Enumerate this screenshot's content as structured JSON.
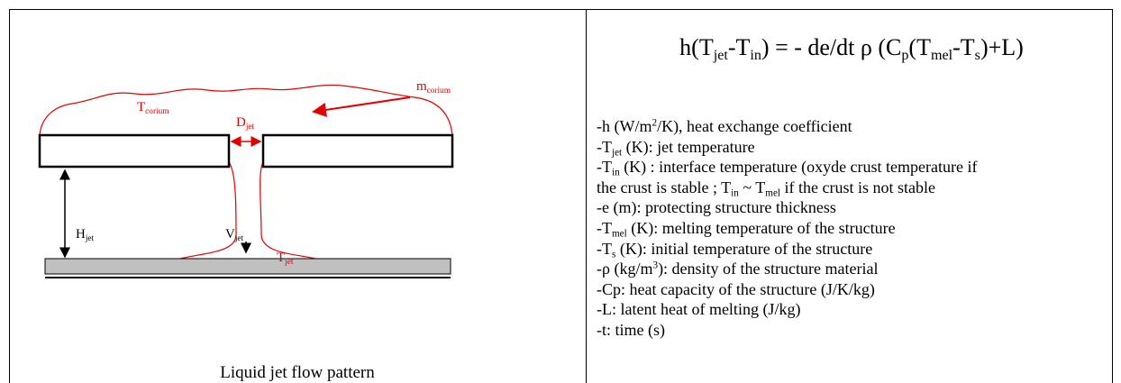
{
  "diagram": {
    "labels": [
      [
        {
          "text": "T"
        },
        {
          "sub": "corium"
        }
      ],
      [
        {
          "text": "m"
        },
        {
          "sub": "corium"
        }
      ],
      [
        {
          "text": "D"
        },
        {
          "sub": "jet"
        }
      ],
      [
        {
          "text": "H"
        },
        {
          "sub": "jet"
        }
      ],
      [
        {
          "text": "V"
        },
        {
          "sub": "jet"
        }
      ],
      [
        {
          "text": "T"
        },
        {
          "sub": "jet"
        }
      ]
    ],
    "caption": "Liquid jet flow pattern"
  },
  "equation": [
    {
      "text": "h(T"
    },
    {
      "sub": "jet"
    },
    {
      "text": "-T"
    },
    {
      "sub": "in"
    },
    {
      "text": ") = - de/dt ρ (C"
    },
    {
      "sub": "p"
    },
    {
      "text": "(T"
    },
    {
      "sub": "mel"
    },
    {
      "text": "-T"
    },
    {
      "sub": "s"
    },
    {
      "text": ")+L)"
    }
  ],
  "definitions": [
    [
      {
        "text": "-h (W/m"
      },
      {
        "sup": "2"
      },
      {
        "text": "/K), heat exchange coefficient"
      }
    ],
    [
      {
        "text": "-T"
      },
      {
        "sub": "jet"
      },
      {
        "text": " (K): jet temperature"
      }
    ],
    [
      {
        "text": "-T"
      },
      {
        "sub": "in"
      },
      {
        "text": " (K) : interface temperature (oxyde crust temperature if"
      }
    ],
    [
      {
        "text": "the crust is stable ; T"
      },
      {
        "sub": "in"
      },
      {
        "text": " ~ T"
      },
      {
        "sub": "mel"
      },
      {
        "text": " if the crust is not stable"
      }
    ],
    [
      {
        "text": "-e (m): protecting structure thickness"
      }
    ],
    [
      {
        "text": "-T"
      },
      {
        "sub": "mel"
      },
      {
        "text": " (K): melting temperature of the structure"
      }
    ],
    [
      {
        "text": "-T"
      },
      {
        "sub": "s"
      },
      {
        "text": " (K): initial temperature of the structure"
      }
    ],
    [
      {
        "text": "-ρ (kg/m"
      },
      {
        "sup": "3"
      },
      {
        "text": "): density of the structure material"
      }
    ],
    [
      {
        "text": "-Cp: heat capacity of the structure (J/K/kg)"
      }
    ],
    [
      {
        "text": "-L: latent heat of melting (J/kg)"
      }
    ],
    [
      {
        "text": "-t: time (s)"
      }
    ]
  ]
}
